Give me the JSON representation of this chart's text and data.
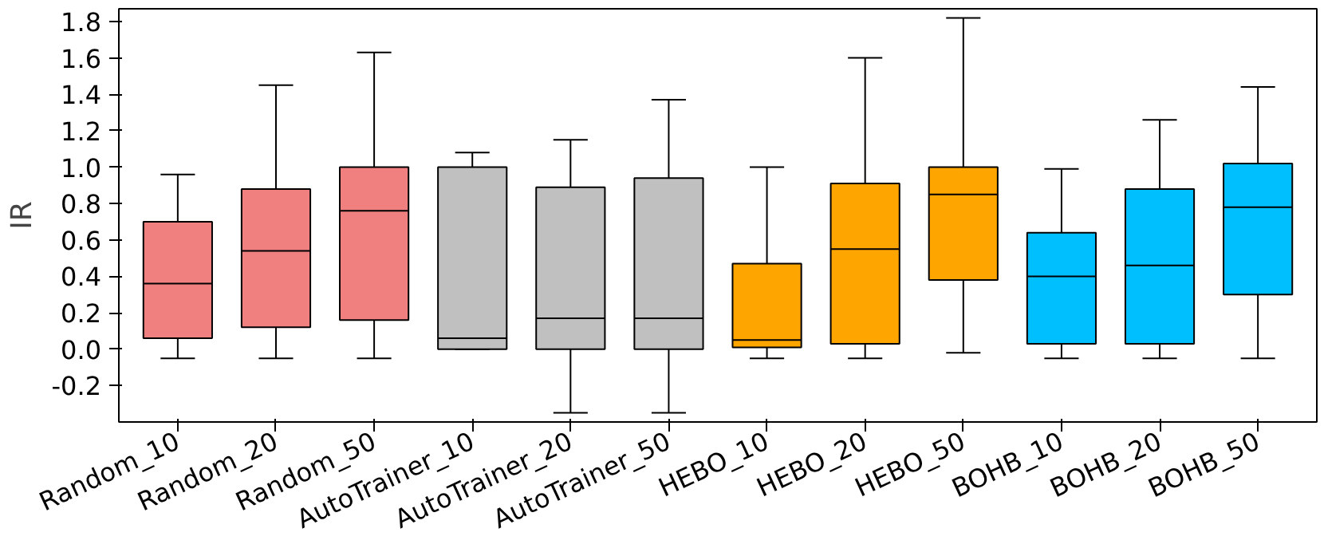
{
  "chart_data": {
    "type": "box",
    "ylabel": "IR",
    "categories": [
      "Random_10",
      "Random_20",
      "Random_50",
      "AutoTrainer_10",
      "AutoTrainer_20",
      "AutoTrainer_50",
      "HEBO_10",
      "HEBO_20",
      "HEBO_50",
      "BOHB_10",
      "BOHB_20",
      "BOHB_50"
    ],
    "colors": [
      "#f08080",
      "#f08080",
      "#f08080",
      "#c0c0c0",
      "#c0c0c0",
      "#c0c0c0",
      "#ffa500",
      "#ffa500",
      "#ffa500",
      "#00bfff",
      "#00bfff",
      "#00bfff"
    ],
    "boxes": [
      {
        "low": -0.05,
        "q1": 0.06,
        "median": 0.36,
        "q3": 0.7,
        "high": 0.96
      },
      {
        "low": -0.05,
        "q1": 0.12,
        "median": 0.54,
        "q3": 0.88,
        "high": 1.45
      },
      {
        "low": -0.05,
        "q1": 0.16,
        "median": 0.76,
        "q3": 1.0,
        "high": 1.63
      },
      {
        "low": 0.0,
        "q1": 0.0,
        "median": 0.06,
        "q3": 1.0,
        "high": 1.08
      },
      {
        "low": -0.35,
        "q1": 0.0,
        "median": 0.17,
        "q3": 0.89,
        "high": 1.15
      },
      {
        "low": -0.35,
        "q1": 0.0,
        "median": 0.17,
        "q3": 0.94,
        "high": 1.37
      },
      {
        "low": -0.05,
        "q1": 0.01,
        "median": 0.05,
        "q3": 0.47,
        "high": 1.0
      },
      {
        "low": -0.05,
        "q1": 0.03,
        "median": 0.55,
        "q3": 0.91,
        "high": 1.6
      },
      {
        "low": -0.02,
        "q1": 0.38,
        "median": 0.85,
        "q3": 1.0,
        "high": 1.82
      },
      {
        "low": -0.05,
        "q1": 0.03,
        "median": 0.4,
        "q3": 0.64,
        "high": 0.99
      },
      {
        "low": -0.05,
        "q1": 0.03,
        "median": 0.46,
        "q3": 0.88,
        "high": 1.26
      },
      {
        "low": -0.05,
        "q1": 0.3,
        "median": 0.78,
        "q3": 1.02,
        "high": 1.44
      }
    ],
    "ylim": [
      -0.4,
      1.87
    ],
    "yticks": [
      -0.2,
      {
        "value": 0,
        "label": "0.0"
      },
      0.2,
      0.4,
      0.6,
      0.8,
      {
        "value": 1,
        "label": "1.0"
      },
      1.2,
      1.4,
      1.6,
      1.8
    ],
    "grid": false
  }
}
